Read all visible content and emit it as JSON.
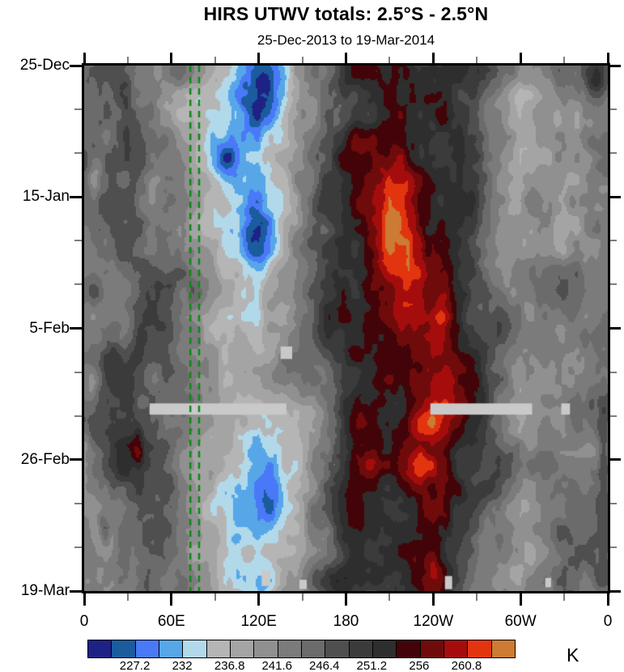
{
  "title": "HIRS UTWV totals: 2.5°S - 2.5°N",
  "subtitle": "25-Dec-2013 to 19-Mar-2014",
  "colorbar": {
    "units": "K",
    "labels": [
      "227.2",
      "232",
      "236.8",
      "241.6",
      "246.4",
      "251.2",
      "256",
      "260.8"
    ]
  },
  "chart_data": {
    "type": "heatmap",
    "title": "HIRS UTWV totals: 2.5°S - 2.5°N",
    "subtitle": "25-Dec-2013 to 19-Mar-2014",
    "x_axis": {
      "kind": "longitude",
      "range_deg": [
        0,
        360
      ],
      "major_ticks": [
        {
          "deg": 0,
          "label": "0"
        },
        {
          "deg": 60,
          "label": "60E"
        },
        {
          "deg": 120,
          "label": "120E"
        },
        {
          "deg": 180,
          "label": "180"
        },
        {
          "deg": 240,
          "label": "120W"
        },
        {
          "deg": 300,
          "label": "60W"
        },
        {
          "deg": 360,
          "label": "0"
        }
      ],
      "minor_step_deg": 30
    },
    "y_axis": {
      "kind": "time",
      "start_date": "25-Dec-2013",
      "end_date": "19-Mar-2014",
      "range_days": [
        0,
        84
      ],
      "major_ticks": [
        {
          "day": 0,
          "label": "25-Dec"
        },
        {
          "day": 21,
          "label": "15-Jan"
        },
        {
          "day": 42,
          "label": "5-Feb"
        },
        {
          "day": 63,
          "label": "26-Feb"
        },
        {
          "day": 84,
          "label": "19-Mar"
        }
      ],
      "minor_step_days": 7
    },
    "levels_K": [
      224.8,
      227.2,
      229.6,
      232,
      234.4,
      236.8,
      239.2,
      241.6,
      244,
      246.4,
      248.8,
      251.2,
      253.6,
      256,
      258.4,
      260.8,
      263.2
    ],
    "labeled_levels_K": [
      227.2,
      232,
      236.8,
      241.6,
      246.4,
      251.2,
      256,
      260.8
    ],
    "palette": [
      "#1f2285",
      "#1a5c9e",
      "#4a79f7",
      "#57a7e8",
      "#b2d9ea",
      "#b5b5b5",
      "#a4a4a4",
      "#909090",
      "#7b7b7b",
      "#6b6b6b",
      "#4f4f4f",
      "#3b3b3b",
      "#2e2e2e",
      "#420408",
      "#700b0b",
      "#a50d0d",
      "#e2350f",
      "#cd7a33"
    ],
    "missing_data_color": "#c9c9c9",
    "reference_lines": {
      "color": "#0e8a10",
      "style": "dashed",
      "orientation": "vertical",
      "lons_deg": [
        73,
        79
      ]
    },
    "missing_data_patches": [
      {
        "lon0": 45,
        "lon1": 139,
        "t0": 54,
        "t1": 55.8
      },
      {
        "lon0": 238,
        "lon1": 308,
        "t0": 54,
        "t1": 55.8
      },
      {
        "lon0": 328,
        "lon1": 334,
        "t0": 54,
        "t1": 55.8
      },
      {
        "lon0": 135,
        "lon1": 143,
        "t0": 44.9,
        "t1": 46.9
      },
      {
        "lon0": 122,
        "lon1": 128,
        "t0": 80.7,
        "t1": 83.2
      },
      {
        "lon0": 148,
        "lon1": 153,
        "t0": 82.2,
        "t1": 83.7
      },
      {
        "lon0": 248,
        "lon1": 253,
        "t0": 81.6,
        "t1": 83.7
      },
      {
        "lon0": 317,
        "lon1": 321,
        "t0": 81.9,
        "t1": 83.4
      }
    ],
    "grid_estimate": {
      "comment_units": "brightness temperature K, coarse estimate read from fill colors",
      "lons_deg": [
        0,
        30,
        60,
        90,
        120,
        150,
        180,
        210,
        240,
        270,
        300,
        330,
        360
      ],
      "days": [
        0,
        7,
        14,
        21,
        28,
        35,
        42,
        49,
        56,
        63,
        70,
        77,
        84
      ],
      "values": [
        [
          245,
          247,
          243,
          236,
          231,
          239,
          250,
          252,
          253,
          251,
          240,
          246,
          245
        ],
        [
          243,
          249,
          242,
          234,
          229,
          241,
          252,
          254,
          252,
          250,
          239,
          243,
          243
        ],
        [
          244,
          248,
          244,
          234,
          230,
          242,
          252,
          255,
          253,
          249,
          238,
          241,
          244
        ],
        [
          245,
          246,
          245,
          235,
          230,
          243,
          251,
          257,
          254,
          248,
          239,
          240,
          245
        ],
        [
          244,
          245,
          244,
          236,
          232,
          244,
          252,
          258,
          256,
          247,
          240,
          242,
          244
        ],
        [
          243,
          247,
          245,
          238,
          234,
          245,
          253,
          256,
          257,
          248,
          241,
          243,
          243
        ],
        [
          244,
          249,
          246,
          239,
          236,
          246,
          252,
          254,
          258,
          250,
          242,
          244,
          244
        ],
        [
          245,
          248,
          245,
          240,
          236,
          244,
          251,
          254,
          257,
          251,
          243,
          243,
          245
        ],
        [
          244,
          249,
          244,
          238,
          234,
          242,
          252,
          255,
          258,
          252,
          242,
          242,
          244
        ],
        [
          243,
          251,
          246,
          237,
          233,
          240,
          251,
          257,
          256,
          250,
          241,
          244,
          243
        ],
        [
          244,
          247,
          245,
          236,
          231,
          239,
          252,
          254,
          255,
          248,
          240,
          245,
          244
        ],
        [
          245,
          246,
          244,
          237,
          232,
          241,
          253,
          253,
          256,
          246,
          241,
          246,
          245
        ],
        [
          244,
          245,
          243,
          238,
          233,
          242,
          252,
          252,
          254,
          245,
          240,
          245,
          244
        ]
      ]
    },
    "anomaly_features": [
      {
        "lon": 125,
        "t": 3,
        "slon": 16,
        "st": 5,
        "amp": -5
      },
      {
        "lon": 100,
        "t": 16,
        "slon": 10,
        "st": 6,
        "amp": -4
      },
      {
        "lon": 118,
        "t": 28,
        "slon": 14,
        "st": 7,
        "amp": -4.5
      },
      {
        "lon": 150,
        "t": 56,
        "slon": 16,
        "st": 4,
        "amp": -5
      },
      {
        "lon": 128,
        "t": 70,
        "slon": 14,
        "st": 6,
        "amp": -6
      },
      {
        "lon": 100,
        "t": 78,
        "slon": 8,
        "st": 4,
        "amp": -4
      },
      {
        "lon": 15,
        "t": 76,
        "slon": 7,
        "st": 4,
        "amp": -5
      },
      {
        "lon": 8,
        "t": 18,
        "slon": 5,
        "st": 3,
        "amp": -4.5
      },
      {
        "lon": 28,
        "t": 42,
        "slon": 5,
        "st": 3,
        "amp": -4.5
      },
      {
        "lon": 5,
        "t": 52,
        "slon": 4,
        "st": 3,
        "amp": -4
      },
      {
        "lon": 215,
        "t": 24,
        "slon": 13,
        "st": 8,
        "amp": 5
      },
      {
        "lon": 228,
        "t": 36,
        "slon": 10,
        "st": 5,
        "amp": 4.5
      },
      {
        "lon": 248,
        "t": 46,
        "slon": 7,
        "st": 20,
        "amp": 3.5
      },
      {
        "lon": 230,
        "t": 64,
        "slon": 12,
        "st": 5,
        "amp": 6
      },
      {
        "lon": 240,
        "t": 81,
        "slon": 9,
        "st": 4,
        "amp": 5
      },
      {
        "lon": 352,
        "t": 3,
        "slon": 8,
        "st": 4,
        "amp": 6.5
      },
      {
        "lon": 37,
        "t": 61,
        "slon": 4,
        "st": 3,
        "amp": 6.5
      },
      {
        "lon": 14,
        "t": 74,
        "slon": 4,
        "st": 3,
        "amp": 6
      },
      {
        "lon": 357,
        "t": 65,
        "slon": 4,
        "st": 8,
        "amp": 4.5
      }
    ]
  }
}
